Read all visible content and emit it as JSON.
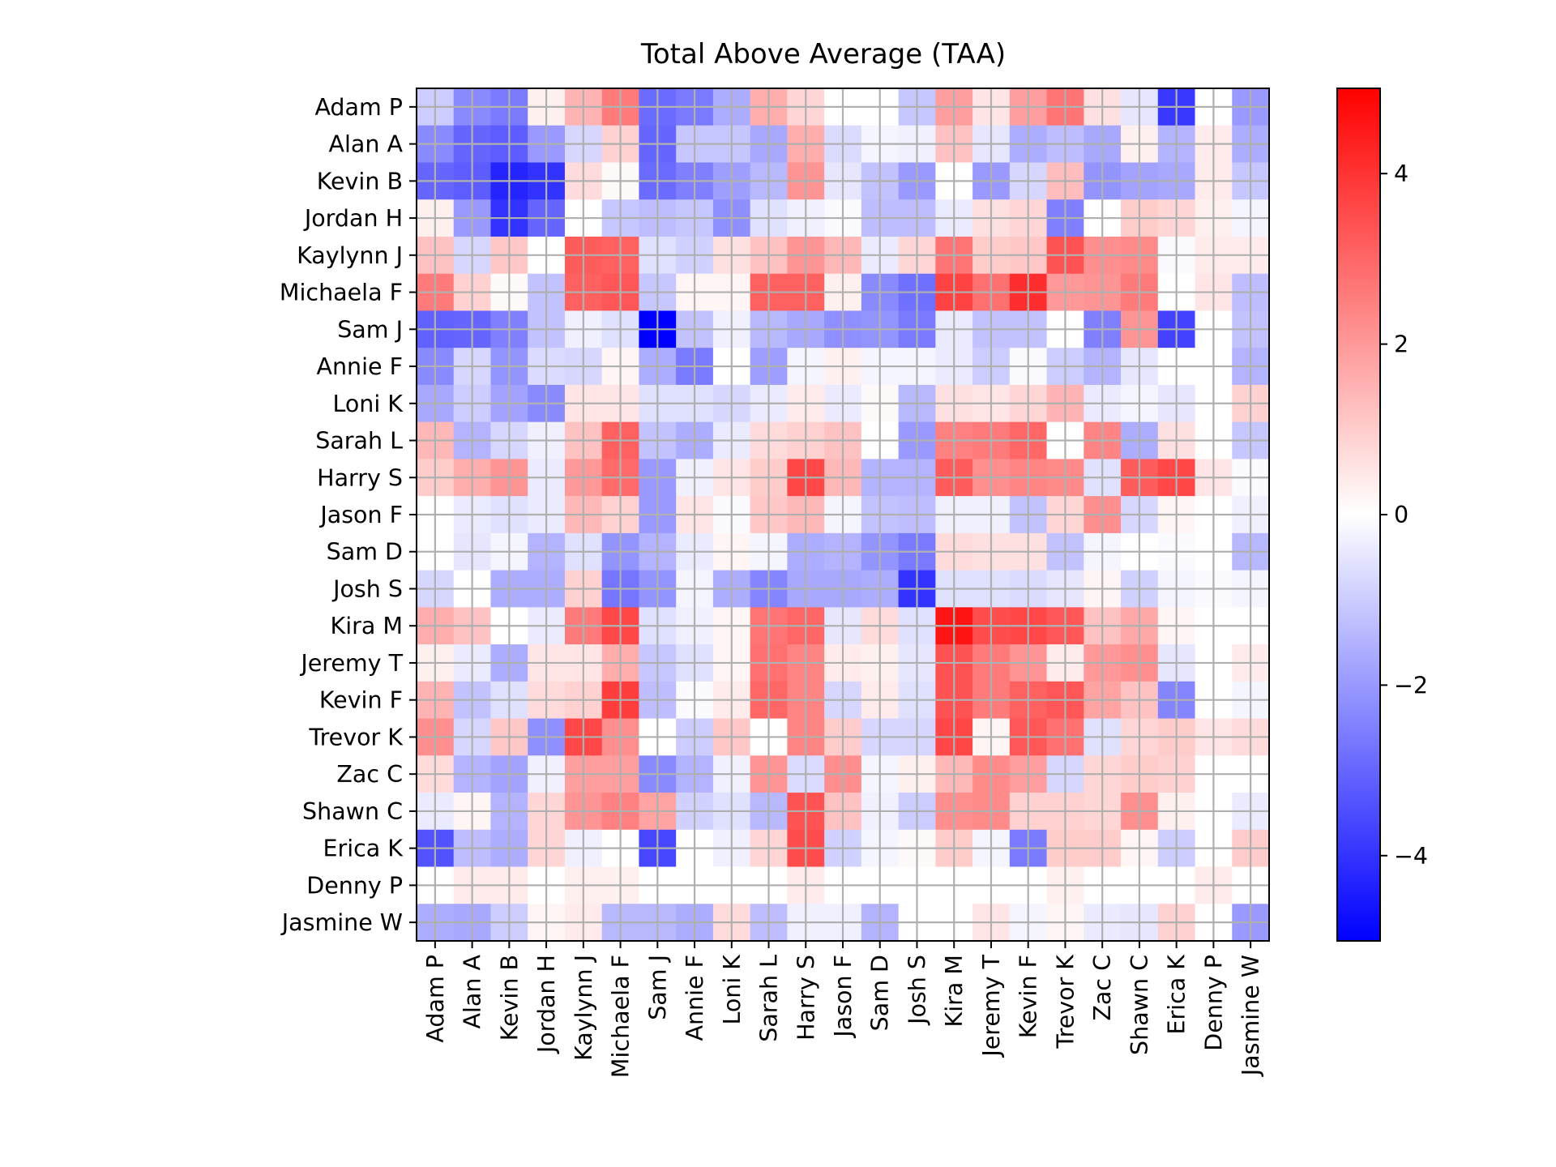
{
  "chart_data": {
    "type": "heatmap",
    "title": "Total Above Average (TAA)",
    "x_categories": [
      "Adam P",
      "Alan A",
      "Kevin B",
      "Jordan H",
      "Kaylynn J",
      "Michaela F",
      "Sam J",
      "Annie F",
      "Loni K",
      "Sarah L",
      "Harry S",
      "Jason F",
      "Sam D",
      "Josh S",
      "Kira M",
      "Jeremy T",
      "Kevin F",
      "Trevor K",
      "Zac C",
      "Shawn C",
      "Erica K",
      "Denny P",
      "Jasmine W"
    ],
    "y_categories": [
      "Adam P",
      "Alan A",
      "Kevin B",
      "Jordan H",
      "Kaylynn J",
      "Michaela F",
      "Sam J",
      "Annie F",
      "Loni K",
      "Sarah L",
      "Harry S",
      "Jason F",
      "Sam D",
      "Josh S",
      "Kira M",
      "Jeremy T",
      "Kevin F",
      "Trevor K",
      "Zac C",
      "Shawn C",
      "Erica K",
      "Denny P",
      "Jasmine W"
    ],
    "colorbar": {
      "colormap": "bwr",
      "vmin": -5,
      "vmax": 5,
      "ticks": [
        -4,
        -2,
        0,
        2,
        4
      ],
      "tick_labels": [
        "−4",
        "−2",
        "0",
        "2",
        "4"
      ]
    },
    "grid": true,
    "values": [
      [
        -1.0,
        -2.3,
        -2.6,
        0.3,
        1.5,
        2.6,
        -2.9,
        -2.6,
        -1.6,
        1.6,
        0.8,
        0.0,
        0.0,
        -1.1,
        1.9,
        0.5,
        1.9,
        2.7,
        0.6,
        -0.5,
        -3.9,
        0.0,
        -2.0
      ],
      [
        -2.3,
        -3.0,
        -3.2,
        -2.0,
        -0.8,
        0.9,
        -3.0,
        -1.1,
        -1.1,
        -1.7,
        1.6,
        -0.7,
        -0.2,
        -0.3,
        1.2,
        -0.5,
        -1.6,
        -1.3,
        -1.7,
        0.3,
        -1.5,
        0.4,
        -1.6
      ],
      [
        -3.0,
        -3.2,
        -4.3,
        -4.0,
        0.7,
        0.1,
        -2.9,
        -2.5,
        -1.9,
        -1.4,
        2.1,
        -0.5,
        -1.2,
        -2.0,
        0.0,
        -2.0,
        -0.8,
        1.3,
        -2.1,
        -1.8,
        -1.7,
        0.4,
        -1.1
      ],
      [
        0.3,
        -2.0,
        -4.0,
        -3.0,
        0.0,
        -1.1,
        -1.3,
        -1.1,
        -2.2,
        -0.6,
        -0.3,
        -0.1,
        -1.3,
        -1.3,
        -0.4,
        0.6,
        0.8,
        -2.5,
        0.0,
        1.0,
        0.8,
        0.3,
        -0.2
      ],
      [
        1.2,
        -0.8,
        1.1,
        0.0,
        3.2,
        3.1,
        -0.6,
        -0.9,
        0.6,
        1.2,
        2.1,
        1.4,
        -0.4,
        0.8,
        2.7,
        1.0,
        1.1,
        3.4,
        2.2,
        2.3,
        -0.1,
        0.4,
        0.4
      ],
      [
        2.6,
        0.9,
        0.1,
        -1.2,
        3.1,
        3.3,
        -1.1,
        0.2,
        0.2,
        3.1,
        3.1,
        0.3,
        -2.3,
        -2.8,
        3.7,
        2.8,
        4.1,
        2.0,
        2.1,
        2.6,
        0.0,
        0.5,
        -1.3
      ],
      [
        -3.1,
        -3.0,
        -2.5,
        -1.2,
        -0.3,
        -0.6,
        -5.0,
        -1.2,
        -0.3,
        -1.4,
        -1.7,
        -2.2,
        -2.1,
        -2.6,
        -0.4,
        -1.2,
        -1.2,
        0.0,
        -2.5,
        2.1,
        -3.7,
        0.0,
        -1.2
      ],
      [
        -2.3,
        -0.8,
        -2.1,
        -0.7,
        -0.8,
        0.2,
        -1.6,
        -2.6,
        0.0,
        -1.9,
        -0.2,
        0.3,
        -0.2,
        -0.2,
        -0.4,
        -1.0,
        -0.1,
        -1.0,
        -1.5,
        -0.5,
        0.0,
        0.0,
        -1.5
      ],
      [
        -1.7,
        -1.0,
        -1.8,
        -2.3,
        0.5,
        0.5,
        -0.6,
        -0.6,
        -0.8,
        -0.4,
        0.4,
        -0.4,
        0.1,
        -1.4,
        0.6,
        0.5,
        0.8,
        1.5,
        -0.4,
        -0.2,
        -0.5,
        0.0,
        0.9
      ],
      [
        1.4,
        -1.5,
        -0.8,
        -0.3,
        1.2,
        3.1,
        -1.2,
        -1.6,
        -0.4,
        0.7,
        0.9,
        1.2,
        0.0,
        -2.0,
        2.5,
        2.6,
        3.0,
        0.0,
        2.4,
        -1.6,
        0.6,
        0.0,
        -1.1
      ],
      [
        1.0,
        1.6,
        2.1,
        -0.4,
        2.0,
        2.9,
        -2.0,
        -0.3,
        0.5,
        1.0,
        3.6,
        1.4,
        -1.5,
        -1.5,
        3.2,
        2.2,
        2.4,
        2.3,
        -0.6,
        3.2,
        3.6,
        0.5,
        -0.1
      ],
      [
        0.0,
        -0.4,
        -0.6,
        -0.4,
        1.4,
        0.9,
        -2.0,
        0.5,
        -0.1,
        1.1,
        1.4,
        -0.2,
        -1.2,
        -1.3,
        -0.3,
        -0.3,
        -1.2,
        0.8,
        2.2,
        -0.8,
        0.2,
        0.0,
        -0.3
      ],
      [
        0.0,
        -0.5,
        -0.2,
        -1.5,
        -0.6,
        -2.1,
        -1.5,
        -0.4,
        0.2,
        -0.2,
        -1.6,
        -1.5,
        -2.1,
        -2.6,
        0.7,
        0.6,
        0.6,
        -1.2,
        -0.2,
        0.0,
        -0.1,
        0.0,
        -1.4
      ],
      [
        -0.8,
        0.0,
        -1.6,
        -1.6,
        0.9,
        -2.7,
        -2.1,
        -0.2,
        -1.6,
        -2.4,
        -1.7,
        -1.7,
        -1.6,
        -4.0,
        -0.6,
        -0.6,
        -0.7,
        -0.5,
        0.2,
        -0.9,
        -0.2,
        -0.1,
        -0.2
      ],
      [
        1.6,
        1.2,
        0.0,
        -0.4,
        2.6,
        3.6,
        -0.6,
        -0.3,
        0.2,
        2.7,
        3.0,
        -0.5,
        0.7,
        -0.6,
        4.6,
        3.5,
        3.6,
        3.3,
        1.2,
        1.7,
        0.2,
        0.0,
        0.0
      ],
      [
        0.3,
        -0.4,
        -1.6,
        0.5,
        0.5,
        1.6,
        -1.1,
        -0.6,
        0.2,
        2.8,
        2.4,
        0.4,
        0.3,
        -0.5,
        3.4,
        2.6,
        2.1,
        0.4,
        2.0,
        2.2,
        -0.5,
        0.0,
        0.4
      ],
      [
        1.5,
        -1.2,
        -0.6,
        0.7,
        0.9,
        3.8,
        -1.3,
        -0.1,
        0.4,
        3.0,
        2.4,
        -0.8,
        0.4,
        -0.6,
        3.4,
        2.6,
        3.1,
        3.3,
        1.8,
        1.2,
        -2.4,
        0.0,
        -0.2
      ],
      [
        2.2,
        -0.8,
        1.1,
        -2.2,
        3.6,
        2.2,
        0.0,
        -1.0,
        1.1,
        0.0,
        2.4,
        1.0,
        -0.8,
        -0.8,
        3.6,
        0.2,
        3.3,
        2.8,
        -0.6,
        0.8,
        1.0,
        0.5,
        0.7
      ],
      [
        0.7,
        -1.5,
        -1.8,
        -0.3,
        1.9,
        1.9,
        -2.3,
        -1.5,
        -0.3,
        2.1,
        -0.7,
        2.2,
        -0.2,
        0.3,
        1.4,
        2.3,
        1.9,
        -0.8,
        0.8,
        1.0,
        0.9,
        0.0,
        0.0
      ],
      [
        -0.4,
        0.2,
        -1.5,
        0.8,
        2.1,
        2.5,
        1.8,
        -0.9,
        -0.6,
        -1.4,
        3.4,
        1.2,
        -0.3,
        -1.0,
        2.2,
        2.3,
        0.9,
        0.9,
        0.8,
        2.2,
        0.3,
        0.0,
        -0.4
      ],
      [
        -3.4,
        -1.3,
        -1.6,
        0.8,
        -0.3,
        0.0,
        -3.6,
        0.0,
        -0.3,
        0.8,
        3.5,
        -0.9,
        -0.2,
        0.1,
        1.0,
        -0.2,
        -2.6,
        1.0,
        1.0,
        0.2,
        -1.0,
        0.0,
        1.0
      ],
      [
        0.0,
        0.4,
        0.4,
        0.0,
        0.3,
        0.3,
        0.0,
        0.0,
        0.0,
        0.0,
        0.4,
        0.0,
        0.0,
        0.0,
        0.0,
        0.0,
        0.0,
        0.3,
        0.0,
        0.0,
        0.0,
        0.4,
        0.0
      ],
      [
        -1.6,
        -1.7,
        -1.0,
        0.2,
        0.4,
        -1.4,
        -1.4,
        -1.6,
        0.7,
        -1.3,
        -0.3,
        -0.3,
        -1.5,
        0.0,
        0.0,
        0.5,
        -0.2,
        0.2,
        -0.4,
        -0.5,
        0.9,
        0.0,
        -2.0
      ]
    ]
  }
}
